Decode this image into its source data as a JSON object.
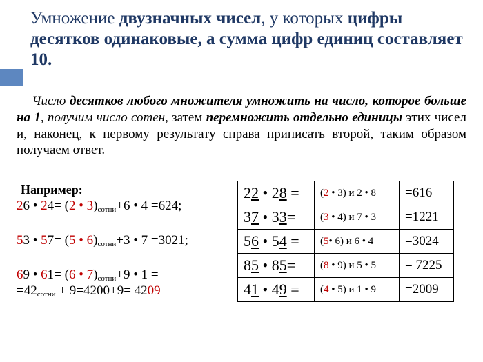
{
  "title_plain1": "Умножение ",
  "title_bold1": "двузначных чисел",
  "title_plain2": ",\n у которых ",
  "title_bold2": "цифры десятков одинаковые, а сумма цифр единиц составляет 10.",
  "rule_p1": "Число ",
  "rule_b1": "десятков любого множителя умножить на число, которое больше на 1",
  "rule_p2": ", получим число сотен",
  "rule_p3": ", затем ",
  "rule_b2": "перемножить отдельно единицы",
  "rule_p4": " этих чисел и, наконец, к первому результату справа приписать второй, таким образом получаем ответ.",
  "eg_label": "Например:",
  "eg1_a": "2",
  "eg1_b": "6 • ",
  "eg1_c": "2",
  "eg1_d": "4= (",
  "eg1_e": "2 • 3",
  "eg1_f": ")",
  "eg1_sub": "сотни",
  "eg1_g": "+6 • 4 =624",
  "eg2_a": "5",
  "eg2_b": "3 • ",
  "eg2_c": "5",
  "eg2_d": "7= (",
  "eg2_e": "5 • 6",
  "eg2_f": ")",
  "eg2_sub": "сотни",
  "eg2_g": "+3 • 7 =3021",
  "eg3_a": "6",
  "eg3_b": "9 • ",
  "eg3_c": "6",
  "eg3_d": "1= (",
  "eg3_e": "6 • 7",
  "eg3_f": ")",
  "eg3_sub": "сотни",
  "eg3_g": "+9 • 1 =",
  "eg3_l2a": "=42",
  "eg3_l2sub": "сотни",
  "eg3_l2b": " + 9=4200+9= 42",
  "eg3_l2c": "09",
  "rows": [
    {
      "p1": "2",
      "p2": "2",
      "p3": " • ",
      "p4": "2",
      "p5": "8",
      "p6": " =",
      "c1": "(",
      "c2": "2",
      "c3": " • 3) и  2 • 8",
      "res": "=616"
    },
    {
      "p1": "3",
      "p2": "7",
      "p3": " • ",
      "p4": "3",
      "p5": "3",
      "p6": "=",
      "c1": "(",
      "c2": "3",
      "c3": " • 4) и  7 • 3",
      "res": "=1221"
    },
    {
      "p1": "5",
      "p2": "6",
      "p3": " • ",
      "p4": "5",
      "p5": "4",
      "p6": " =",
      "c1": "(",
      "c2": "5",
      "c3": "• 6) и  6 • 4",
      "res": "=3024"
    },
    {
      "p1": "8",
      "p2": "5",
      "p3": " • ",
      "p4": "8",
      "p5": "5",
      "p6": "=",
      "c1": "(",
      "c2": "8",
      "c3": " • 9) и  5 • 5",
      "res": "= 7225"
    },
    {
      "p1": "4",
      "p2": "1",
      "p3": " • ",
      "p4": "4",
      "p5": "9",
      "p6": " =",
      "c1": "(",
      "c2": "4",
      "c3": " • 5) и  1 • 9",
      "res": "=2009"
    }
  ]
}
